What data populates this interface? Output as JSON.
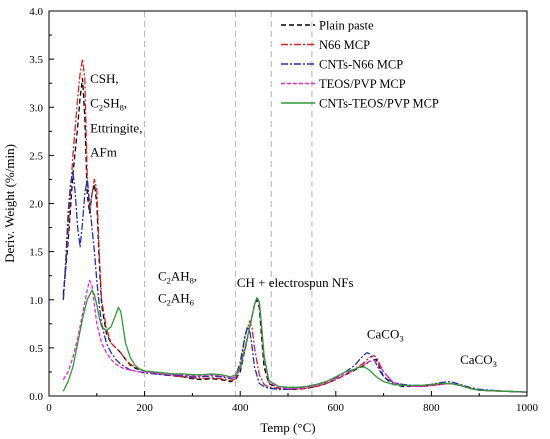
{
  "chart_data": {
    "type": "line",
    "title": "",
    "xlabel": "Temp (°C)",
    "ylabel": "Deriv. Weight (%/min)",
    "xlim": [
      0,
      1000
    ],
    "ylim": [
      0,
      4.0
    ],
    "xticks": [
      "0",
      "200",
      "400",
      "600",
      "800",
      "1000"
    ],
    "yticks": [
      "0.0",
      "0.5",
      "1.0",
      "1.5",
      "2.0",
      "2.5",
      "3.0",
      "3.5",
      "4.0"
    ],
    "grid": false,
    "legend_position": "top-right",
    "reference_lines_x": [
      200,
      390,
      465,
      550
    ],
    "annotations": [
      {
        "x": 86,
        "y": 3.25,
        "parts": [
          {
            "t": "CSH,"
          }
        ]
      },
      {
        "x": 86,
        "y": 3.0,
        "parts": [
          {
            "t": "C"
          },
          {
            "t": "2",
            "sub": true
          },
          {
            "t": "SH"
          },
          {
            "t": "8",
            "sub": true
          },
          {
            "t": ","
          }
        ]
      },
      {
        "x": 86,
        "y": 2.74,
        "parts": [
          {
            "t": "Ettringite,"
          }
        ]
      },
      {
        "x": 86,
        "y": 2.49,
        "parts": [
          {
            "t": "AFm"
          }
        ]
      },
      {
        "x": 228,
        "y": 1.2,
        "parts": [
          {
            "t": "C"
          },
          {
            "t": "2",
            "sub": true
          },
          {
            "t": "AH"
          },
          {
            "t": "8",
            "sub": true
          },
          {
            "t": ","
          }
        ]
      },
      {
        "x": 228,
        "y": 0.97,
        "parts": [
          {
            "t": "C"
          },
          {
            "t": "2",
            "sub": true
          },
          {
            "t": "AH"
          },
          {
            "t": "6",
            "sub": true
          }
        ]
      },
      {
        "x": 393,
        "y": 1.13,
        "parts": [
          {
            "t": "CH + electrospun NFs"
          }
        ]
      },
      {
        "x": 665,
        "y": 0.6,
        "parts": [
          {
            "t": "CaCO"
          },
          {
            "t": "3",
            "sub": true
          }
        ]
      },
      {
        "x": 860,
        "y": 0.33,
        "parts": [
          {
            "t": "CaCO"
          },
          {
            "t": "3",
            "sub": true
          }
        ]
      }
    ],
    "series": [
      {
        "name": "Plain paste",
        "color": "#000000",
        "dash": "5,3",
        "x": [
          30,
          40,
          50,
          60,
          65,
          70,
          75,
          80,
          85,
          90,
          95,
          100,
          105,
          110,
          120,
          130,
          140,
          150,
          160,
          170,
          180,
          190,
          200,
          220,
          240,
          260,
          280,
          300,
          320,
          340,
          360,
          380,
          390,
          400,
          410,
          420,
          430,
          435,
          440,
          445,
          450,
          460,
          480,
          500,
          520,
          540,
          560,
          580,
          600,
          620,
          640,
          660,
          670,
          680,
          685,
          690,
          700,
          720,
          740,
          760,
          780,
          800,
          820,
          840,
          860,
          880,
          900,
          950,
          1000
        ],
        "y": [
          1.05,
          1.6,
          2.3,
          2.8,
          3.1,
          3.3,
          2.9,
          2.1,
          1.9,
          2.1,
          2.2,
          2.0,
          1.4,
          0.95,
          0.65,
          0.55,
          0.5,
          0.45,
          0.38,
          0.32,
          0.29,
          0.27,
          0.26,
          0.24,
          0.22,
          0.21,
          0.2,
          0.18,
          0.17,
          0.18,
          0.17,
          0.15,
          0.17,
          0.25,
          0.48,
          0.72,
          0.95,
          1.0,
          0.92,
          0.6,
          0.3,
          0.13,
          0.08,
          0.07,
          0.07,
          0.08,
          0.1,
          0.13,
          0.17,
          0.22,
          0.27,
          0.32,
          0.36,
          0.37,
          0.38,
          0.32,
          0.2,
          0.12,
          0.1,
          0.1,
          0.1,
          0.11,
          0.12,
          0.13,
          0.11,
          0.08,
          0.06,
          0.05,
          0.04
        ]
      },
      {
        "name": "N66 MCP",
        "color": "#d8231f",
        "dash": "7,2,2,2",
        "x": [
          30,
          40,
          50,
          60,
          65,
          70,
          75,
          80,
          85,
          90,
          95,
          100,
          105,
          110,
          120,
          130,
          140,
          150,
          160,
          170,
          180,
          190,
          200,
          220,
          240,
          260,
          280,
          300,
          320,
          340,
          360,
          380,
          390,
          400,
          410,
          420,
          425,
          430,
          440,
          450,
          460,
          480,
          500,
          520,
          540,
          560,
          580,
          600,
          620,
          640,
          660,
          670,
          680,
          685,
          690,
          700,
          720,
          740,
          760,
          780,
          800,
          820,
          840,
          860,
          880,
          900,
          950,
          1000
        ],
        "y": [
          1.0,
          1.7,
          2.5,
          3.1,
          3.35,
          3.5,
          3.3,
          2.3,
          1.95,
          2.1,
          2.25,
          2.15,
          1.5,
          1.0,
          0.7,
          0.55,
          0.5,
          0.45,
          0.38,
          0.33,
          0.3,
          0.28,
          0.26,
          0.24,
          0.22,
          0.21,
          0.2,
          0.19,
          0.18,
          0.19,
          0.18,
          0.16,
          0.18,
          0.3,
          0.62,
          0.78,
          0.7,
          0.5,
          0.22,
          0.12,
          0.09,
          0.08,
          0.07,
          0.07,
          0.08,
          0.1,
          0.13,
          0.17,
          0.22,
          0.28,
          0.35,
          0.4,
          0.42,
          0.4,
          0.35,
          0.25,
          0.14,
          0.11,
          0.1,
          0.1,
          0.11,
          0.12,
          0.13,
          0.11,
          0.08,
          0.06,
          0.05,
          0.04
        ]
      },
      {
        "name": "CNTs-N66 MCP",
        "color": "#1f2fb8",
        "dash": "7,2,2,2",
        "x": [
          30,
          35,
          40,
          45,
          50,
          55,
          60,
          65,
          70,
          75,
          80,
          85,
          90,
          95,
          100,
          105,
          110,
          120,
          130,
          140,
          150,
          160,
          170,
          180,
          190,
          200,
          220,
          240,
          260,
          280,
          300,
          320,
          340,
          360,
          380,
          390,
          400,
          410,
          415,
          420,
          425,
          430,
          440,
          450,
          460,
          480,
          500,
          520,
          540,
          560,
          580,
          600,
          620,
          640,
          650,
          660,
          665,
          670,
          680,
          690,
          700,
          720,
          740,
          760,
          780,
          800,
          820,
          840,
          860,
          880,
          900,
          950,
          1000
        ],
        "y": [
          1.0,
          1.4,
          1.9,
          2.2,
          2.33,
          2.1,
          1.75,
          1.55,
          1.8,
          2.1,
          2.25,
          2.0,
          1.75,
          1.5,
          1.2,
          0.95,
          0.75,
          0.55,
          0.45,
          0.38,
          0.33,
          0.3,
          0.27,
          0.26,
          0.25,
          0.24,
          0.23,
          0.22,
          0.22,
          0.21,
          0.2,
          0.2,
          0.21,
          0.2,
          0.18,
          0.2,
          0.35,
          0.62,
          0.72,
          0.68,
          0.5,
          0.3,
          0.13,
          0.1,
          0.08,
          0.07,
          0.07,
          0.08,
          0.1,
          0.12,
          0.15,
          0.19,
          0.25,
          0.32,
          0.38,
          0.43,
          0.45,
          0.44,
          0.38,
          0.28,
          0.2,
          0.14,
          0.12,
          0.11,
          0.11,
          0.12,
          0.14,
          0.15,
          0.12,
          0.09,
          0.07,
          0.05,
          0.04
        ]
      },
      {
        "name": "TEOS/PVP MCP",
        "color": "#e628d8",
        "dash": "4,2",
        "x": [
          30,
          40,
          50,
          60,
          70,
          80,
          85,
          90,
          95,
          100,
          110,
          120,
          130,
          140,
          150,
          160,
          170,
          180,
          190,
          200,
          220,
          240,
          260,
          280,
          300,
          320,
          340,
          360,
          380,
          390,
          400,
          410,
          420,
          430,
          435,
          440,
          445,
          450,
          460,
          480,
          500,
          520,
          540,
          560,
          580,
          600,
          620,
          640,
          660,
          670,
          680,
          690,
          700,
          720,
          740,
          760,
          780,
          800,
          820,
          840,
          860,
          880,
          900,
          950,
          1000
        ],
        "y": [
          0.17,
          0.25,
          0.4,
          0.6,
          0.85,
          1.1,
          1.2,
          1.15,
          0.95,
          0.75,
          0.55,
          0.45,
          0.38,
          0.33,
          0.3,
          0.28,
          0.27,
          0.26,
          0.25,
          0.25,
          0.24,
          0.23,
          0.22,
          0.22,
          0.21,
          0.21,
          0.22,
          0.21,
          0.19,
          0.2,
          0.28,
          0.48,
          0.72,
          0.95,
          1.02,
          0.98,
          0.7,
          0.38,
          0.14,
          0.09,
          0.08,
          0.08,
          0.09,
          0.11,
          0.14,
          0.18,
          0.23,
          0.28,
          0.33,
          0.36,
          0.37,
          0.33,
          0.25,
          0.14,
          0.11,
          0.1,
          0.1,
          0.11,
          0.12,
          0.13,
          0.11,
          0.08,
          0.06,
          0.05,
          0.04
        ]
      },
      {
        "name": "CNTs-TEOS/PVP MCP",
        "color": "#2f9a33",
        "dash": "",
        "x": [
          30,
          40,
          50,
          60,
          70,
          80,
          90,
          95,
          100,
          105,
          110,
          120,
          130,
          140,
          145,
          150,
          155,
          160,
          170,
          180,
          190,
          200,
          220,
          240,
          260,
          280,
          300,
          320,
          340,
          360,
          380,
          390,
          400,
          410,
          420,
          430,
          435,
          440,
          445,
          450,
          460,
          480,
          500,
          520,
          540,
          560,
          580,
          600,
          620,
          640,
          650,
          660,
          670,
          680,
          690,
          700,
          720,
          740,
          760,
          780,
          800,
          820,
          840,
          860,
          880,
          900,
          950,
          1000
        ],
        "y": [
          0.05,
          0.15,
          0.3,
          0.55,
          0.8,
          1.0,
          1.1,
          1.05,
          0.95,
          0.82,
          0.72,
          0.68,
          0.72,
          0.85,
          0.92,
          0.88,
          0.72,
          0.55,
          0.4,
          0.32,
          0.28,
          0.26,
          0.25,
          0.24,
          0.23,
          0.23,
          0.22,
          0.22,
          0.23,
          0.22,
          0.2,
          0.22,
          0.3,
          0.5,
          0.72,
          0.95,
          1.02,
          0.98,
          0.72,
          0.42,
          0.16,
          0.1,
          0.09,
          0.09,
          0.1,
          0.12,
          0.15,
          0.2,
          0.25,
          0.28,
          0.3,
          0.3,
          0.27,
          0.22,
          0.18,
          0.15,
          0.12,
          0.11,
          0.11,
          0.11,
          0.12,
          0.13,
          0.13,
          0.11,
          0.08,
          0.06,
          0.05,
          0.04
        ]
      }
    ]
  }
}
